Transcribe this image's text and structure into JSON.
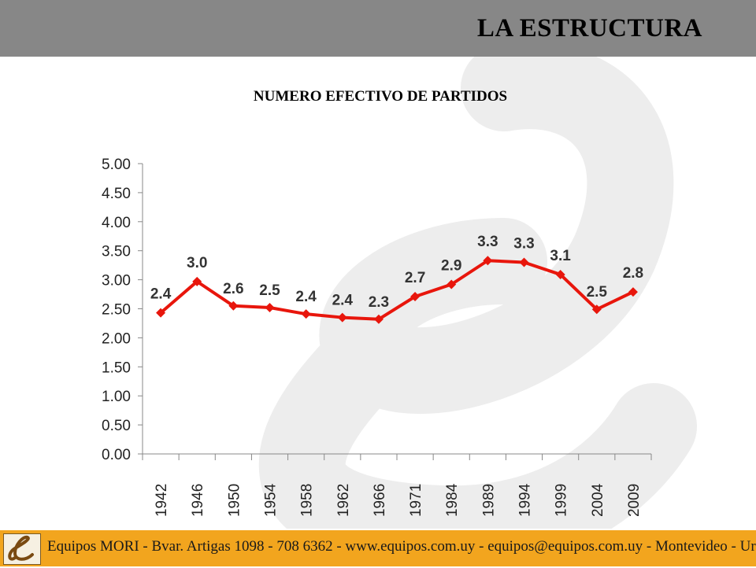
{
  "header": {
    "title": "LA ESTRUCTURA"
  },
  "colors": {
    "header_bg": "#878787",
    "series": "#e8160c",
    "footer_bg": "#f2a51e",
    "watermark": "#ededed"
  },
  "footer": {
    "text": "Equipos MORI - Bvar. Artigas 1098 - 708 6362 - www.equipos.com.uy - equipos@equipos.com.uy - Montevideo - Uruguay",
    "logo_icon": "equipos-mori-e-logo"
  },
  "chart_data": {
    "type": "line",
    "title": "NUMERO EFECTIVO DE PARTIDOS",
    "xlabel": "",
    "ylabel": "",
    "categories": [
      "1942",
      "1946",
      "1950",
      "1954",
      "1958",
      "1962",
      "1966",
      "1971",
      "1984",
      "1989",
      "1994",
      "1999",
      "2004",
      "2009"
    ],
    "series": [
      {
        "values": [
          2.43,
          2.97,
          2.55,
          2.52,
          2.41,
          2.35,
          2.32,
          2.71,
          2.92,
          3.33,
          3.3,
          3.09,
          2.49,
          2.79
        ],
        "labels": [
          "2.4",
          "3.0",
          "2.6",
          "2.5",
          "2.4",
          "2.4",
          "2.3",
          "2.7",
          "2.9",
          "3.3",
          "3.3",
          "3.1",
          "2.5",
          "2.8"
        ]
      }
    ],
    "ylim": [
      0,
      5
    ],
    "yticks": [
      0,
      0.5,
      1,
      1.5,
      2,
      2.5,
      3,
      3.5,
      4,
      4.5,
      5
    ],
    "ytick_labels": [
      "0.00",
      "0.50",
      "1.00",
      "1.50",
      "2.00",
      "2.50",
      "3.00",
      "3.50",
      "4.00",
      "4.50",
      "5.00"
    ],
    "grid": false,
    "legend": "none",
    "marker": "diamond"
  }
}
